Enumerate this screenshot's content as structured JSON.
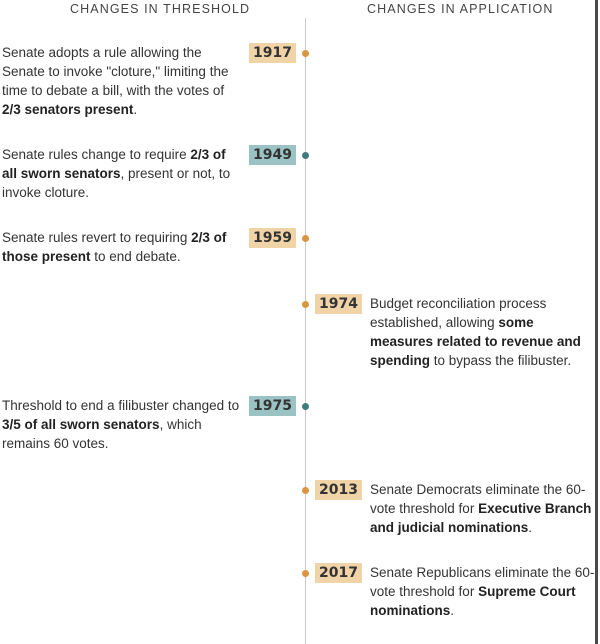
{
  "headers": {
    "left": "CHANGES IN THRESHOLD",
    "right": "CHANGES IN APPLICATION"
  },
  "events": [
    {
      "year": "1917",
      "color": "orange",
      "side": "left",
      "text": [
        {
          "t": "Senate adopts a rule allowing the Senate to invoke \"cloture,\" limiting the time to debate a bill, with the votes of "
        },
        {
          "t": "2/3 senators present",
          "b": true
        },
        {
          "t": "."
        }
      ]
    },
    {
      "year": "1949",
      "color": "teal",
      "side": "left",
      "text": [
        {
          "t": "Senate rules change to require "
        },
        {
          "t": "2/3 of all sworn senators",
          "b": true
        },
        {
          "t": ", present or not, to invoke cloture."
        }
      ]
    },
    {
      "year": "1959",
      "color": "orange",
      "side": "left",
      "text": [
        {
          "t": "Senate rules revert to requiring "
        },
        {
          "t": "2/3 of those present",
          "b": true
        },
        {
          "t": " to end debate."
        }
      ]
    },
    {
      "year": "1974",
      "color": "orange",
      "side": "right",
      "text": [
        {
          "t": "Budget reconciliation process established, allowing "
        },
        {
          "t": "some measures related to revenue and spending",
          "b": true
        },
        {
          "t": " to bypass the filibuster."
        }
      ]
    },
    {
      "year": "1975",
      "color": "teal",
      "side": "left",
      "text": [
        {
          "t": "Threshold to end a filibuster changed to "
        },
        {
          "t": "3/5 of all sworn senators",
          "b": true
        },
        {
          "t": ", which remains 60 votes."
        }
      ]
    },
    {
      "year": "2013",
      "color": "orange",
      "side": "right",
      "text": [
        {
          "t": "Senate Democrats eliminate the 60-vote threshold for "
        },
        {
          "t": "Executive Branch and judicial nominations",
          "b": true
        },
        {
          "t": "."
        }
      ]
    },
    {
      "year": "2017",
      "color": "orange",
      "side": "right",
      "text": [
        {
          "t": "Senate Republicans eliminate the 60-vote threshold for "
        },
        {
          "t": "Supreme Court nominations",
          "b": true
        },
        {
          "t": "."
        }
      ]
    }
  ]
}
